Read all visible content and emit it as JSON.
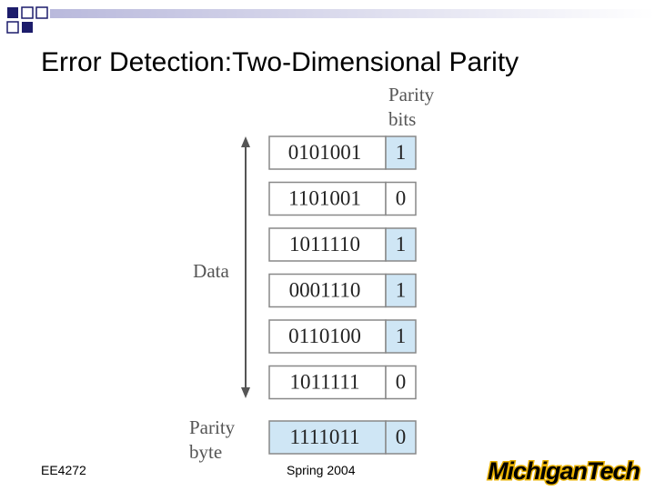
{
  "title": "Error Detection:Two-Dimensional Parity",
  "diagram": {
    "parity_bits_label": [
      "Parity",
      "bits"
    ],
    "data_label": "Data",
    "parity_byte_label": [
      "Parity",
      "byte"
    ],
    "rows": [
      {
        "data": "0101001",
        "parity": "1"
      },
      {
        "data": "1101001",
        "parity": "0"
      },
      {
        "data": "1011110",
        "parity": "1"
      },
      {
        "data": "0001110",
        "parity": "1"
      },
      {
        "data": "0110100",
        "parity": "1"
      },
      {
        "data": "1011111",
        "parity": "0"
      }
    ],
    "parity_row": {
      "data": "1111011",
      "parity": "0"
    }
  },
  "footer": {
    "course": "EE4272",
    "term": "Spring 2004",
    "logo": [
      "Michigan",
      "Tech"
    ]
  }
}
